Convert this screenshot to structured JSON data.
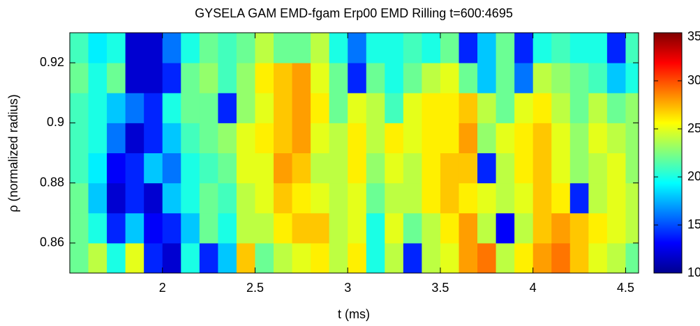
{
  "chart_data": {
    "type": "heatmap",
    "title": "GYSELA GAM EMD-fgam Erp00 EMD Rilling t=600:4695",
    "xlabel": "t (ms)",
    "ylabel": "ρ (normalized radius)",
    "colormap": "jet",
    "x": [
      1.55,
      1.65,
      1.75,
      1.85,
      1.95,
      2.05,
      2.15,
      2.25,
      2.35,
      2.45,
      2.55,
      2.65,
      2.75,
      2.85,
      2.95,
      3.05,
      3.15,
      3.25,
      3.35,
      3.45,
      3.55,
      3.65,
      3.75,
      3.85,
      3.95,
      4.05,
      4.15,
      4.25,
      4.35,
      4.45,
      4.55
    ],
    "y": [
      0.855,
      0.865,
      0.875,
      0.885,
      0.895,
      0.905,
      0.915,
      0.925
    ],
    "z": [
      [
        22,
        24,
        20,
        25,
        14,
        12,
        20,
        14,
        18,
        27,
        22,
        24,
        25,
        26,
        24,
        26,
        20,
        24,
        14,
        24,
        25,
        28,
        29,
        24,
        26,
        28,
        29,
        27,
        25,
        24,
        22
      ],
      [
        22,
        20,
        14,
        18,
        13,
        14,
        18,
        22,
        20,
        24,
        24,
        26,
        27,
        27,
        24,
        25,
        20,
        25,
        22,
        24,
        26,
        28,
        24,
        13,
        24,
        27,
        28,
        27,
        26,
        25,
        24
      ],
      [
        22,
        18,
        12,
        14,
        12,
        18,
        20,
        22,
        21,
        24,
        25,
        27,
        26,
        25,
        24,
        25,
        22,
        24,
        24,
        26,
        27,
        26,
        25,
        24,
        25,
        27,
        26,
        14,
        24,
        25,
        24
      ],
      [
        21,
        19,
        13,
        14,
        18,
        16,
        20,
        21,
        22,
        25,
        25,
        28,
        27,
        24,
        24,
        26,
        23,
        25,
        24,
        26,
        27,
        27,
        14,
        24,
        26,
        27,
        25,
        23,
        24,
        25,
        23
      ],
      [
        21,
        20,
        16,
        12,
        14,
        18,
        21,
        22,
        23,
        25,
        26,
        27,
        28,
        25,
        24,
        26,
        24,
        26,
        25,
        26,
        26,
        28,
        23,
        25,
        26,
        27,
        25,
        23,
        25,
        24,
        23
      ],
      [
        21,
        20,
        18,
        16,
        14,
        20,
        22,
        22,
        14,
        23,
        25,
        27,
        28,
        26,
        22,
        25,
        24,
        21,
        25,
        26,
        26,
        27,
        24,
        22,
        25,
        26,
        24,
        22,
        24,
        22,
        23
      ],
      [
        22,
        20,
        22,
        12,
        12,
        14,
        22,
        23,
        21,
        23,
        26,
        27,
        28,
        25,
        22,
        14,
        22,
        20,
        22,
        24,
        25,
        22,
        18,
        22,
        16,
        24,
        23,
        22,
        21,
        18,
        20
      ],
      [
        21,
        19,
        20,
        12,
        12,
        16,
        20,
        22,
        21,
        22,
        24,
        22,
        22,
        24,
        20,
        16,
        20,
        20,
        21,
        20,
        22,
        14,
        18,
        22,
        14,
        20,
        21,
        20,
        20,
        14,
        21
      ]
    ],
    "xlim": [
      1.5,
      4.57
    ],
    "xticks": [
      2,
      2.5,
      3,
      3.5,
      4,
      4.5
    ],
    "ylim": [
      0.85,
      0.93
    ],
    "yticks": [
      0.86,
      0.88,
      0.9,
      0.92
    ],
    "clim": [
      10,
      35
    ],
    "cticks": [
      10,
      15,
      20,
      25,
      30,
      35
    ]
  }
}
